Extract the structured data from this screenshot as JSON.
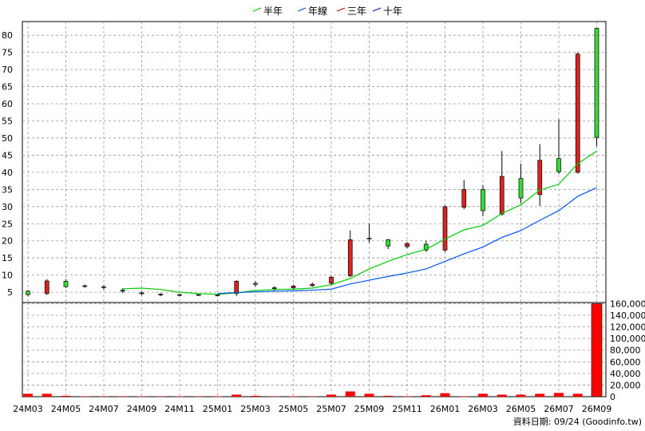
{
  "chart_data": {
    "type": "candlestick",
    "legend": {
      "placement": "top-center",
      "entries": [
        {
          "name": "半年",
          "color": "#00cc00"
        },
        {
          "name": "年線",
          "color": "#0055ee"
        },
        {
          "name": "三年",
          "color": "#cc0000"
        },
        {
          "name": "十年",
          "color": "#3300aa"
        }
      ]
    },
    "price_axis": {
      "ticks": [
        5,
        10,
        15,
        20,
        25,
        30,
        35,
        40,
        45,
        50,
        55,
        60,
        65,
        70,
        75,
        80
      ],
      "range": [
        2,
        84
      ]
    },
    "volume_axis": {
      "ticks": [
        0,
        20000,
        40000,
        60000,
        80000,
        100000,
        120000,
        140000,
        160000
      ],
      "tick_labels": [
        "0",
        "20,000",
        "40,000",
        "60,000",
        "80,000",
        "100,000",
        "120,000",
        "140,000",
        "160,000"
      ],
      "range": [
        0,
        162000
      ]
    },
    "x_labels": [
      "24M03",
      "24M05",
      "24M07",
      "24M09",
      "24M11",
      "25M01",
      "25M03",
      "25M05",
      "25M07",
      "25M09",
      "25M11",
      "26M01",
      "26M03",
      "26M05",
      "26M07",
      "26M09"
    ],
    "grid": true,
    "candles": [
      {
        "m": "24M03",
        "o": 4.3,
        "c": 5.3,
        "h": 5.6,
        "l": 3.8,
        "v": 5000
      },
      {
        "m": "24M04",
        "o": 8.3,
        "c": 4.6,
        "h": 8.8,
        "l": 4.2,
        "v": 5000
      },
      {
        "m": "24M05",
        "o": 6.6,
        "c": 8.2,
        "h": 8.8,
        "l": 6.3,
        "v": 1500
      },
      {
        "m": "24M06",
        "o": 6.9,
        "c": 6.8,
        "h": 7.2,
        "l": 6.3,
        "v": 500
      },
      {
        "m": "24M07",
        "o": 6.4,
        "c": 6.6,
        "h": 7.1,
        "l": 5.8,
        "v": 500
      },
      {
        "m": "24M08",
        "o": 5.3,
        "c": 5.6,
        "h": 6.2,
        "l": 4.8,
        "v": 500
      },
      {
        "m": "24M09",
        "o": 4.6,
        "c": 4.8,
        "h": 5.2,
        "l": 4.1,
        "v": 500
      },
      {
        "m": "24M10",
        "o": 4.4,
        "c": 4.3,
        "h": 4.8,
        "l": 3.9,
        "v": 500
      },
      {
        "m": "24M11",
        "o": 4.3,
        "c": 4.2,
        "h": 4.6,
        "l": 3.8,
        "v": 500
      },
      {
        "m": "24M12",
        "o": 4.2,
        "c": 4.3,
        "h": 4.5,
        "l": 3.9,
        "v": 500
      },
      {
        "m": "25M01",
        "o": 4.2,
        "c": 4.1,
        "h": 4.4,
        "l": 3.8,
        "v": 500
      },
      {
        "m": "25M02",
        "o": 8.2,
        "c": 4.6,
        "h": 8.5,
        "l": 3.9,
        "v": 3500
      },
      {
        "m": "25M03",
        "o": 7.3,
        "c": 7.6,
        "h": 8.2,
        "l": 6.6,
        "v": 1500
      },
      {
        "m": "25M04",
        "o": 6.2,
        "c": 6.3,
        "h": 6.8,
        "l": 5.2,
        "v": 500
      },
      {
        "m": "25M05",
        "o": 6.8,
        "c": 6.3,
        "h": 7.2,
        "l": 5.8,
        "v": 500
      },
      {
        "m": "25M06",
        "o": 7.3,
        "c": 6.9,
        "h": 7.8,
        "l": 6.6,
        "v": 500
      },
      {
        "m": "25M07",
        "o": 9.4,
        "c": 7.6,
        "h": 9.8,
        "l": 7.3,
        "v": 3500
      },
      {
        "m": "25M08",
        "o": 20.3,
        "c": 9.8,
        "h": 23.0,
        "l": 9.4,
        "v": 9000
      },
      {
        "m": "25M09",
        "o": 20.6,
        "c": 20.8,
        "h": 25.0,
        "l": 19.5,
        "v": 5000
      },
      {
        "m": "25M10",
        "o": 18.5,
        "c": 20.3,
        "h": 20.6,
        "l": 17.6,
        "v": 1500
      },
      {
        "m": "25M11",
        "o": 19.2,
        "c": 18.3,
        "h": 19.6,
        "l": 17.8,
        "v": 500
      },
      {
        "m": "25M12",
        "o": 17.3,
        "c": 19.0,
        "h": 20.0,
        "l": 16.8,
        "v": 2500
      },
      {
        "m": "26M01",
        "o": 30.0,
        "c": 17.3,
        "h": 30.3,
        "l": 16.8,
        "v": 6000
      },
      {
        "m": "26M02",
        "o": 35.0,
        "c": 29.8,
        "h": 37.8,
        "l": 29.2,
        "v": 500
      },
      {
        "m": "26M03",
        "o": 28.8,
        "c": 35.0,
        "h": 36.2,
        "l": 27.2,
        "v": 5000
      },
      {
        "m": "26M04",
        "o": 38.8,
        "c": 27.8,
        "h": 46.2,
        "l": 27.3,
        "v": 3500
      },
      {
        "m": "26M05",
        "o": 32.5,
        "c": 38.2,
        "h": 42.5,
        "l": 31.0,
        "v": 3500
      },
      {
        "m": "26M06",
        "o": 43.5,
        "c": 33.5,
        "h": 48.2,
        "l": 30.2,
        "v": 5000
      },
      {
        "m": "26M07",
        "o": 40.2,
        "c": 44.0,
        "h": 55.5,
        "l": 39.5,
        "v": 6500
      },
      {
        "m": "26M08",
        "o": 74.5,
        "c": 40.0,
        "h": 75.0,
        "l": 39.6,
        "v": 5000
      },
      {
        "m": "26M09",
        "o": 50.2,
        "c": 82.0,
        "h": 82.2,
        "l": 47.6,
        "v": 160000
      }
    ],
    "ma_halfyear": [
      {
        "m": "24M08",
        "v": 6.0
      },
      {
        "m": "24M09",
        "v": 6.2
      },
      {
        "m": "24M10",
        "v": 5.8
      },
      {
        "m": "24M11",
        "v": 5.0
      },
      {
        "m": "24M12",
        "v": 4.6
      },
      {
        "m": "25M01",
        "v": 4.4
      },
      {
        "m": "25M02",
        "v": 4.8
      },
      {
        "m": "25M03",
        "v": 5.5
      },
      {
        "m": "25M04",
        "v": 5.8
      },
      {
        "m": "25M05",
        "v": 5.9
      },
      {
        "m": "25M06",
        "v": 6.2
      },
      {
        "m": "25M07",
        "v": 7.2
      },
      {
        "m": "25M08",
        "v": 9.0
      },
      {
        "m": "25M09",
        "v": 11.8
      },
      {
        "m": "25M10",
        "v": 14.0
      },
      {
        "m": "25M11",
        "v": 16.0
      },
      {
        "m": "25M12",
        "v": 17.5
      },
      {
        "m": "26M01",
        "v": 20.5
      },
      {
        "m": "26M02",
        "v": 23.2
      },
      {
        "m": "26M03",
        "v": 24.5
      },
      {
        "m": "26M04",
        "v": 28.0
      },
      {
        "m": "26M05",
        "v": 30.5
      },
      {
        "m": "26M06",
        "v": 34.8
      },
      {
        "m": "26M07",
        "v": 36.5
      },
      {
        "m": "26M08",
        "v": 42.5
      },
      {
        "m": "26M09",
        "v": 46.2
      }
    ],
    "ma_year": [
      {
        "m": "25M01",
        "v": 4.6
      },
      {
        "m": "25M02",
        "v": 4.9
      },
      {
        "m": "25M03",
        "v": 5.1
      },
      {
        "m": "25M04",
        "v": 5.3
      },
      {
        "m": "25M05",
        "v": 5.4
      },
      {
        "m": "25M06",
        "v": 5.6
      },
      {
        "m": "25M07",
        "v": 5.9
      },
      {
        "m": "25M08",
        "v": 7.4
      },
      {
        "m": "25M09",
        "v": 8.5
      },
      {
        "m": "25M10",
        "v": 9.6
      },
      {
        "m": "25M11",
        "v": 10.6
      },
      {
        "m": "25M12",
        "v": 11.8
      },
      {
        "m": "26M01",
        "v": 14.0
      },
      {
        "m": "26M02",
        "v": 16.2
      },
      {
        "m": "26M03",
        "v": 18.2
      },
      {
        "m": "26M04",
        "v": 21.0
      },
      {
        "m": "26M05",
        "v": 23.0
      },
      {
        "m": "26M06",
        "v": 26.0
      },
      {
        "m": "26M07",
        "v": 28.8
      },
      {
        "m": "26M08",
        "v": 33.0
      },
      {
        "m": "26M09",
        "v": 35.5
      }
    ],
    "source_text": "資料日期: 09/24 (Goodinfo.tw)",
    "up_color": "#33dd33",
    "down_color": "#dd2222",
    "volume_color": "#ff0000"
  }
}
